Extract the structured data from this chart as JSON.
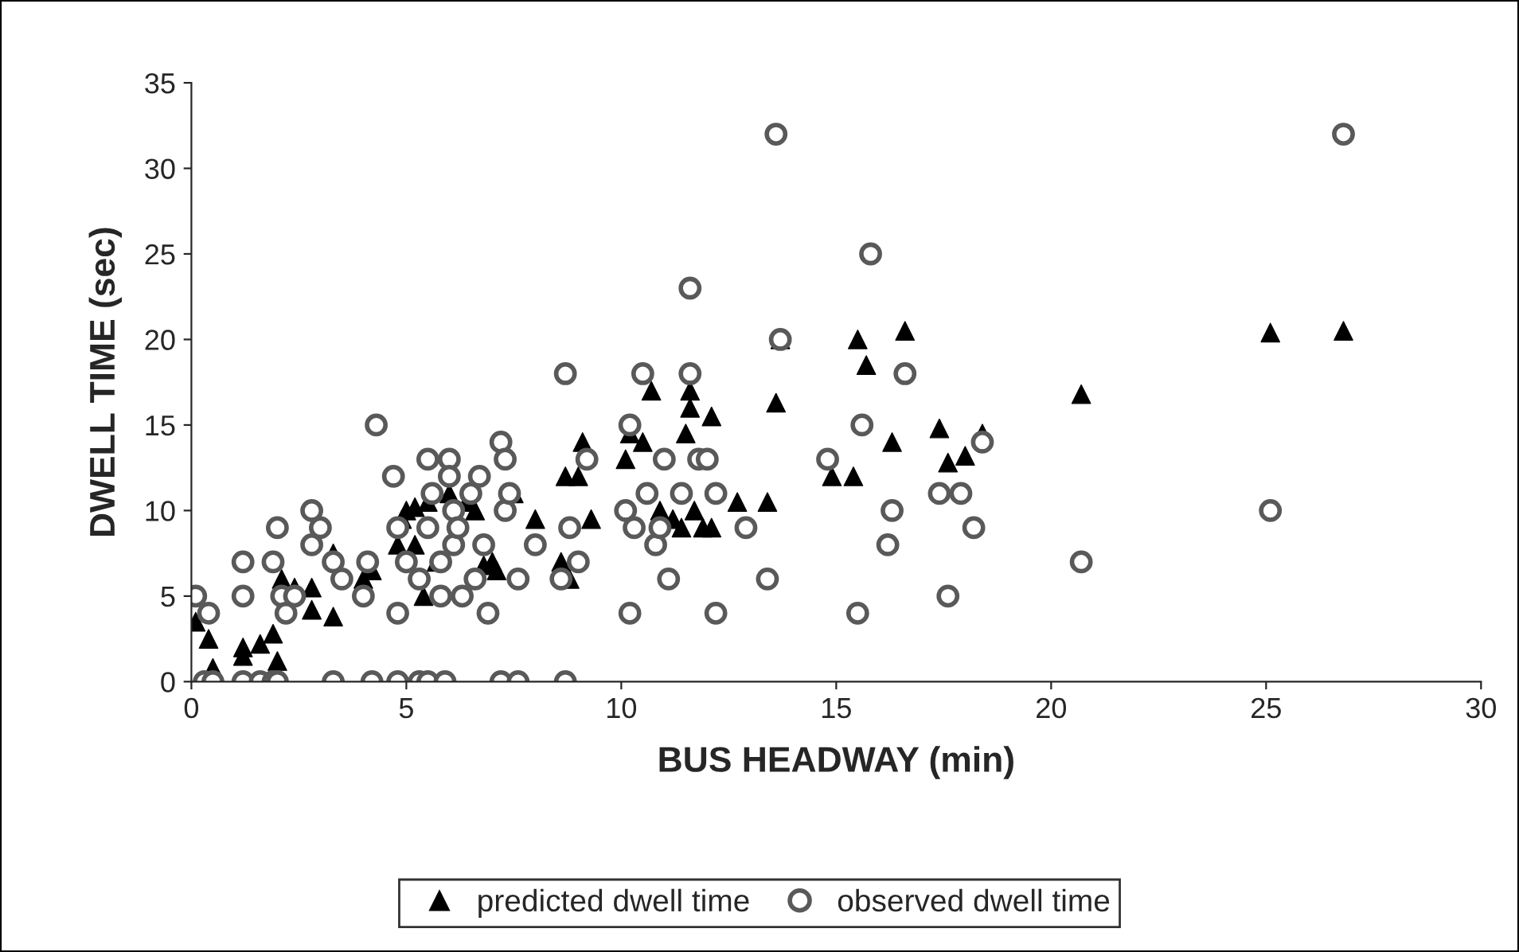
{
  "chart_data": {
    "type": "scatter",
    "xlabel": "BUS HEADWAY (min)",
    "ylabel": "DWELL TIME (sec)",
    "xlim": [
      0,
      30
    ],
    "xticks": [
      0,
      5,
      10,
      15,
      20,
      25,
      30
    ],
    "ylim": [
      0,
      35
    ],
    "yticks": [
      0,
      5,
      10,
      15,
      20,
      25,
      30,
      35
    ],
    "grid": false,
    "legend": "bottom",
    "series": [
      {
        "name": "predicted dwell time",
        "color": "#000000",
        "marker": "triangle",
        "x": [
          0.1,
          0.4,
          0.5,
          1.2,
          1.2,
          1.6,
          1.9,
          2.0,
          2.1,
          2.4,
          2.8,
          2.8,
          3.3,
          3.3,
          4.0,
          4.2,
          4.8,
          4.9,
          5.0,
          5.2,
          5.2,
          5.4,
          5.5,
          5.7,
          6.0,
          6.4,
          6.6,
          6.8,
          7.0,
          7.1,
          7.5,
          8.0,
          8.6,
          8.7,
          8.8,
          9.0,
          9.1,
          9.3,
          10.1,
          10.2,
          10.5,
          10.7,
          10.9,
          11.2,
          11.4,
          11.5,
          11.6,
          11.6,
          11.7,
          11.9,
          12.1,
          12.1,
          12.7,
          13.4,
          13.6,
          13.7,
          14.9,
          15.4,
          15.5,
          15.7,
          16.3,
          16.6,
          17.4,
          17.6,
          18.0,
          18.4,
          20.7,
          25.1,
          26.8
        ],
        "values": [
          3.5,
          2.5,
          0.8,
          1.5,
          2,
          2.2,
          2.8,
          1.2,
          6,
          5.5,
          4.2,
          5.5,
          3.8,
          7.5,
          6,
          6.5,
          8,
          9.5,
          10,
          10.2,
          8,
          5,
          10.5,
          7,
          11,
          10.5,
          10,
          6.8,
          7,
          6.5,
          11,
          9.5,
          7,
          12,
          6,
          12,
          14,
          9.5,
          13,
          14.5,
          14,
          17,
          10,
          9.5,
          9,
          14.5,
          16,
          17,
          10,
          9,
          15.5,
          9,
          10.5,
          10.5,
          16.3,
          20,
          12,
          12,
          20,
          18.5,
          14,
          20.5,
          14.8,
          12.8,
          13.2,
          14.5,
          16.8,
          20.4,
          20.5
        ]
      },
      {
        "name": "observed dwell time",
        "color": "#595959",
        "marker": "circle",
        "x": [
          0.1,
          0.4,
          0.3,
          0.5,
          1.2,
          1.6,
          1.9,
          2.0,
          3.3,
          4.2,
          4.8,
          5.3,
          5.5,
          5.9,
          7.2,
          7.6,
          8.7,
          1.2,
          1.2,
          1.9,
          2.0,
          2.1,
          2.2,
          2.4,
          2.8,
          3.0,
          2.8,
          3.3,
          3.5,
          4.0,
          4.1,
          4.3,
          4.7,
          4.8,
          4.8,
          5.0,
          5.3,
          5.5,
          5.6,
          5.5,
          5.8,
          5.8,
          6.0,
          6.0,
          6.1,
          6.1,
          6.2,
          6.3,
          6.5,
          6.6,
          6.7,
          6.8,
          6.9,
          7.2,
          7.3,
          7.3,
          7.4,
          7.6,
          8.0,
          8.6,
          8.7,
          8.8,
          9.0,
          9.2,
          10.2,
          10.1,
          10.2,
          10.3,
          10.6,
          10.5,
          10.8,
          10.9,
          11.0,
          11.1,
          11.4,
          11.6,
          11.6,
          11.8,
          12.0,
          12.2,
          12.2,
          12.9,
          13.4,
          13.6,
          13.7,
          14.8,
          15.5,
          15.6,
          15.8,
          16.2,
          16.3,
          16.6,
          17.4,
          17.6,
          17.9,
          18.2,
          18.4,
          20.7,
          25.1,
          26.8
        ],
        "values": [
          5,
          4,
          0,
          0,
          0,
          0,
          0,
          0,
          0,
          0,
          0,
          0,
          0,
          0,
          0,
          0,
          0,
          5,
          7,
          7,
          9,
          5,
          4,
          5,
          10,
          9,
          8,
          7,
          6,
          5,
          7,
          15,
          12,
          9,
          4,
          7,
          6,
          13,
          11,
          9,
          7,
          5,
          13,
          12,
          10,
          8,
          9,
          5,
          11,
          6,
          12,
          8,
          4,
          14,
          13,
          10,
          11,
          6,
          8,
          6,
          18,
          9,
          7,
          13,
          15,
          10,
          4,
          9,
          11,
          18,
          8,
          9,
          13,
          6,
          11,
          23,
          18,
          13,
          13,
          11,
          4,
          9,
          6,
          32,
          20,
          13,
          4,
          15,
          25,
          8,
          10,
          18,
          11,
          5,
          11,
          9,
          14,
          7,
          10,
          32
        ]
      }
    ]
  }
}
